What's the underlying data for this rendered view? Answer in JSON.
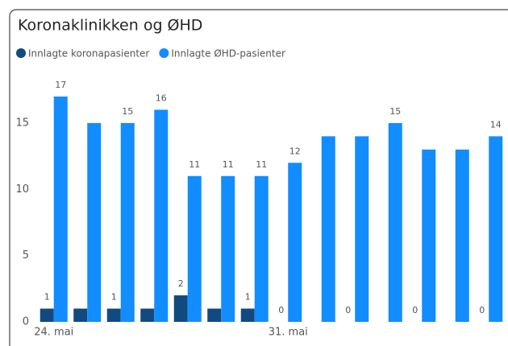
{
  "chart_data": {
    "type": "bar",
    "title": "Koronaklinikken og ØHD",
    "categories": [
      "24. mai",
      null,
      null,
      null,
      null,
      null,
      null,
      "31. mai",
      null,
      null,
      null,
      null,
      null,
      null
    ],
    "series": [
      {
        "name": "Innlagte koronapasienter",
        "color": "#124a80",
        "values": [
          1,
          1,
          1,
          1,
          2,
          1,
          1,
          0,
          0,
          0,
          0,
          0,
          0,
          0
        ],
        "value_labels": [
          "1",
          null,
          "1",
          null,
          "2",
          null,
          "1",
          "0",
          null,
          "0",
          null,
          "0",
          null,
          "0"
        ]
      },
      {
        "name": "Innlagte ØHD-pasienter",
        "color": "#118dff",
        "values": [
          17,
          15,
          15,
          16,
          11,
          11,
          11,
          12,
          14,
          14,
          15,
          13,
          13,
          14
        ],
        "value_labels": [
          "17",
          null,
          "15",
          "16",
          "11",
          "11",
          "11",
          "12",
          null,
          null,
          "15",
          null,
          null,
          "14"
        ]
      }
    ],
    "ylim": [
      0,
      19
    ],
    "yticks": [
      0,
      5,
      10,
      15
    ],
    "grid": false,
    "legend": "top-left"
  }
}
